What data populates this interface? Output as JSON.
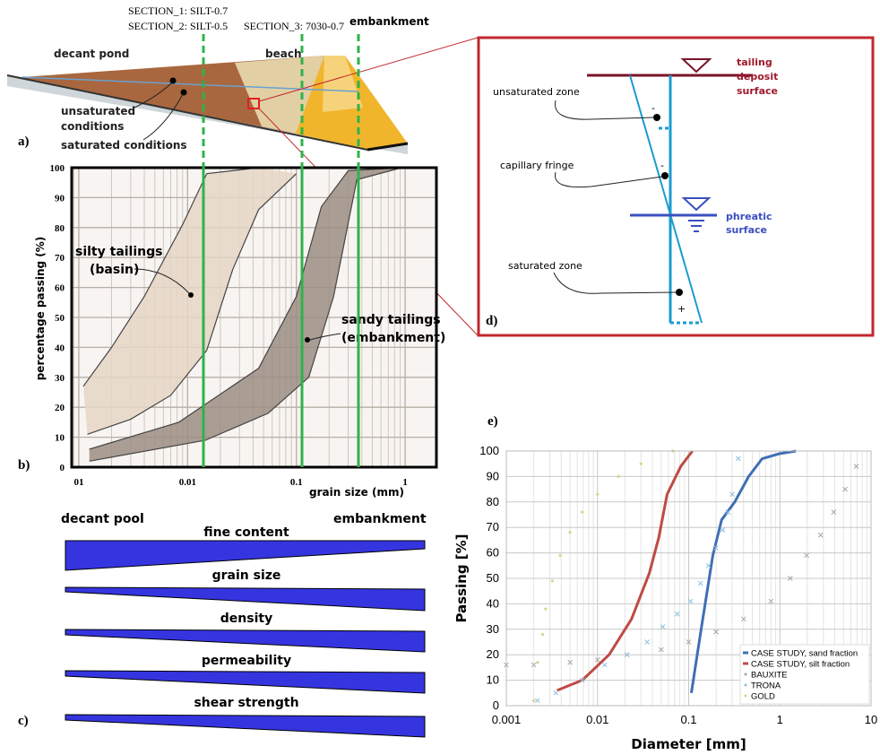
{
  "header": {
    "sections": [
      "SECTION_1: SILT-0.7",
      "SECTION_2: SILT-0.5",
      "SECTION_3: 7030-0.7"
    ],
    "embankment": "embankment"
  },
  "panel_a": {
    "label": "a)",
    "decant_pond": "decant pond",
    "beach": "beach",
    "unsaturated": [
      "unsaturated",
      "conditions"
    ],
    "saturated": "saturated conditions"
  },
  "panel_b": {
    "label": "b)"
  },
  "panel_c": {
    "label": "c)",
    "left": "decant pool",
    "right": "embankment",
    "properties": [
      "fine content",
      "grain size",
      "density",
      "permeability",
      "shear strength"
    ]
  },
  "panel_d": {
    "label": "d)",
    "tailing_surface": [
      "tailing",
      "deposit",
      "surface"
    ],
    "unsaturated": "unsaturated zone",
    "capillary": "capillary fringe",
    "phreatic": [
      "phreatic",
      "surface"
    ],
    "saturated": "saturated zone",
    "signs": [
      "-",
      "-",
      "+"
    ]
  },
  "panel_e": {
    "label": "e)"
  },
  "chart_data": [
    {
      "type": "band",
      "xlabel": "grain size (mm)",
      "ylabel": "percentage passing (%)",
      "xscale": "log",
      "xlim": [
        0.00086,
        1.94
      ],
      "ylim": [
        0,
        100
      ],
      "xticks": [
        {
          "value": 0.001,
          "label": "01"
        },
        0.01,
        0.1,
        1
      ],
      "yticks": [
        0,
        10,
        20,
        30,
        40,
        50,
        60,
        70,
        80,
        90,
        100
      ],
      "grid": true,
      "bands": [
        {
          "label": [
            "silty tailings",
            "(basin)"
          ],
          "color": "#e6d6c6",
          "upper": {
            "x": [
              0.0011,
              0.002,
              0.004,
              0.009,
              0.015,
              0.045
            ],
            "values": [
              27,
              40,
              57,
              81,
              98,
              100
            ]
          },
          "lower": {
            "x": [
              0.0012,
              0.003,
              0.007,
              0.015,
              0.026,
              0.045,
              0.1
            ],
            "values": [
              11,
              16,
              24,
              39,
              66,
              86,
              98
            ]
          }
        },
        {
          "label": [
            "sandy tailings",
            "(embankment)"
          ],
          "color": "#9c8d83",
          "upper": {
            "x": [
              0.00125,
              0.0083,
              0.045,
              0.1,
              0.17,
              0.3,
              0.93
            ],
            "values": [
              6,
              15,
              33,
              57,
              87,
              99,
              100
            ]
          },
          "lower": {
            "x": [
              0.00125,
              0.0146,
              0.055,
              0.13,
              0.22,
              0.36,
              0.93
            ],
            "values": [
              2,
              9,
              18,
              30,
              57,
              96,
              100
            ]
          }
        }
      ]
    },
    {
      "type": "line",
      "xlabel": "Diameter [mm]",
      "ylabel": "Passing [%]",
      "xscale": "log",
      "xlim": [
        0.001,
        10
      ],
      "ylim": [
        0,
        100
      ],
      "xticks": [
        0.001,
        0.01,
        0.1,
        1,
        10
      ],
      "yticks": [
        0,
        10,
        20,
        30,
        40,
        50,
        60,
        70,
        80,
        90,
        100
      ],
      "grid": true,
      "legend": "lower right",
      "series": [
        {
          "name": "CASE STUDY, sand fraction",
          "color": "#3f6fb3",
          "marker": "none",
          "x": [
            0.107,
            0.137,
            0.184,
            0.23,
            0.32,
            0.455,
            0.64,
            1,
            1.5
          ],
          "values": [
            5,
            30,
            59,
            73,
            80,
            90,
            97,
            99,
            100
          ]
        },
        {
          "name": "CASE STUDY, silt fraction",
          "color": "#bf4a45",
          "marker": "none",
          "x": [
            0.0036,
            0.0068,
            0.0134,
            0.0236,
            0.037,
            0.047,
            0.058,
            0.082,
            0.11
          ],
          "values": [
            6,
            10,
            20,
            34,
            52,
            66,
            83,
            94,
            100
          ]
        },
        {
          "name": "BAUXITE",
          "color": "#a6a6a6",
          "marker": "x",
          "x": [
            0.001,
            0.002,
            0.005,
            0.01,
            0.0211,
            0.05,
            0.1,
            0.2,
            0.4,
            0.8,
            1.3,
            1.97,
            2.8,
            3.9,
            5.2,
            6.9
          ],
          "values": [
            16,
            16,
            17,
            18,
            20,
            22,
            25,
            29,
            34,
            41,
            50,
            59,
            67,
            76,
            85,
            94
          ]
        },
        {
          "name": "TRONA",
          "color": "#8cc0e2",
          "marker": "x",
          "x": [
            0.0022,
            0.0035,
            0.0068,
            0.012,
            0.021,
            0.035,
            0.052,
            0.075,
            0.105,
            0.135,
            0.165,
            0.2,
            0.236,
            0.27,
            0.3,
            0.35
          ],
          "values": [
            2,
            5,
            10,
            16,
            20,
            25,
            31,
            36,
            41,
            48,
            55,
            62,
            69,
            76,
            83,
            97
          ]
        },
        {
          "name": "GOLD",
          "color": "#d6d68c",
          "marker": "dot",
          "x": [
            0.002,
            0.0022,
            0.0025,
            0.0027,
            0.0032,
            0.0039,
            0.005,
            0.0068,
            0.01,
            0.017,
            0.03,
            0.067
          ],
          "values": [
            2,
            17,
            28,
            38,
            49,
            59,
            68,
            76,
            83,
            90,
            95,
            100
          ]
        }
      ]
    }
  ]
}
